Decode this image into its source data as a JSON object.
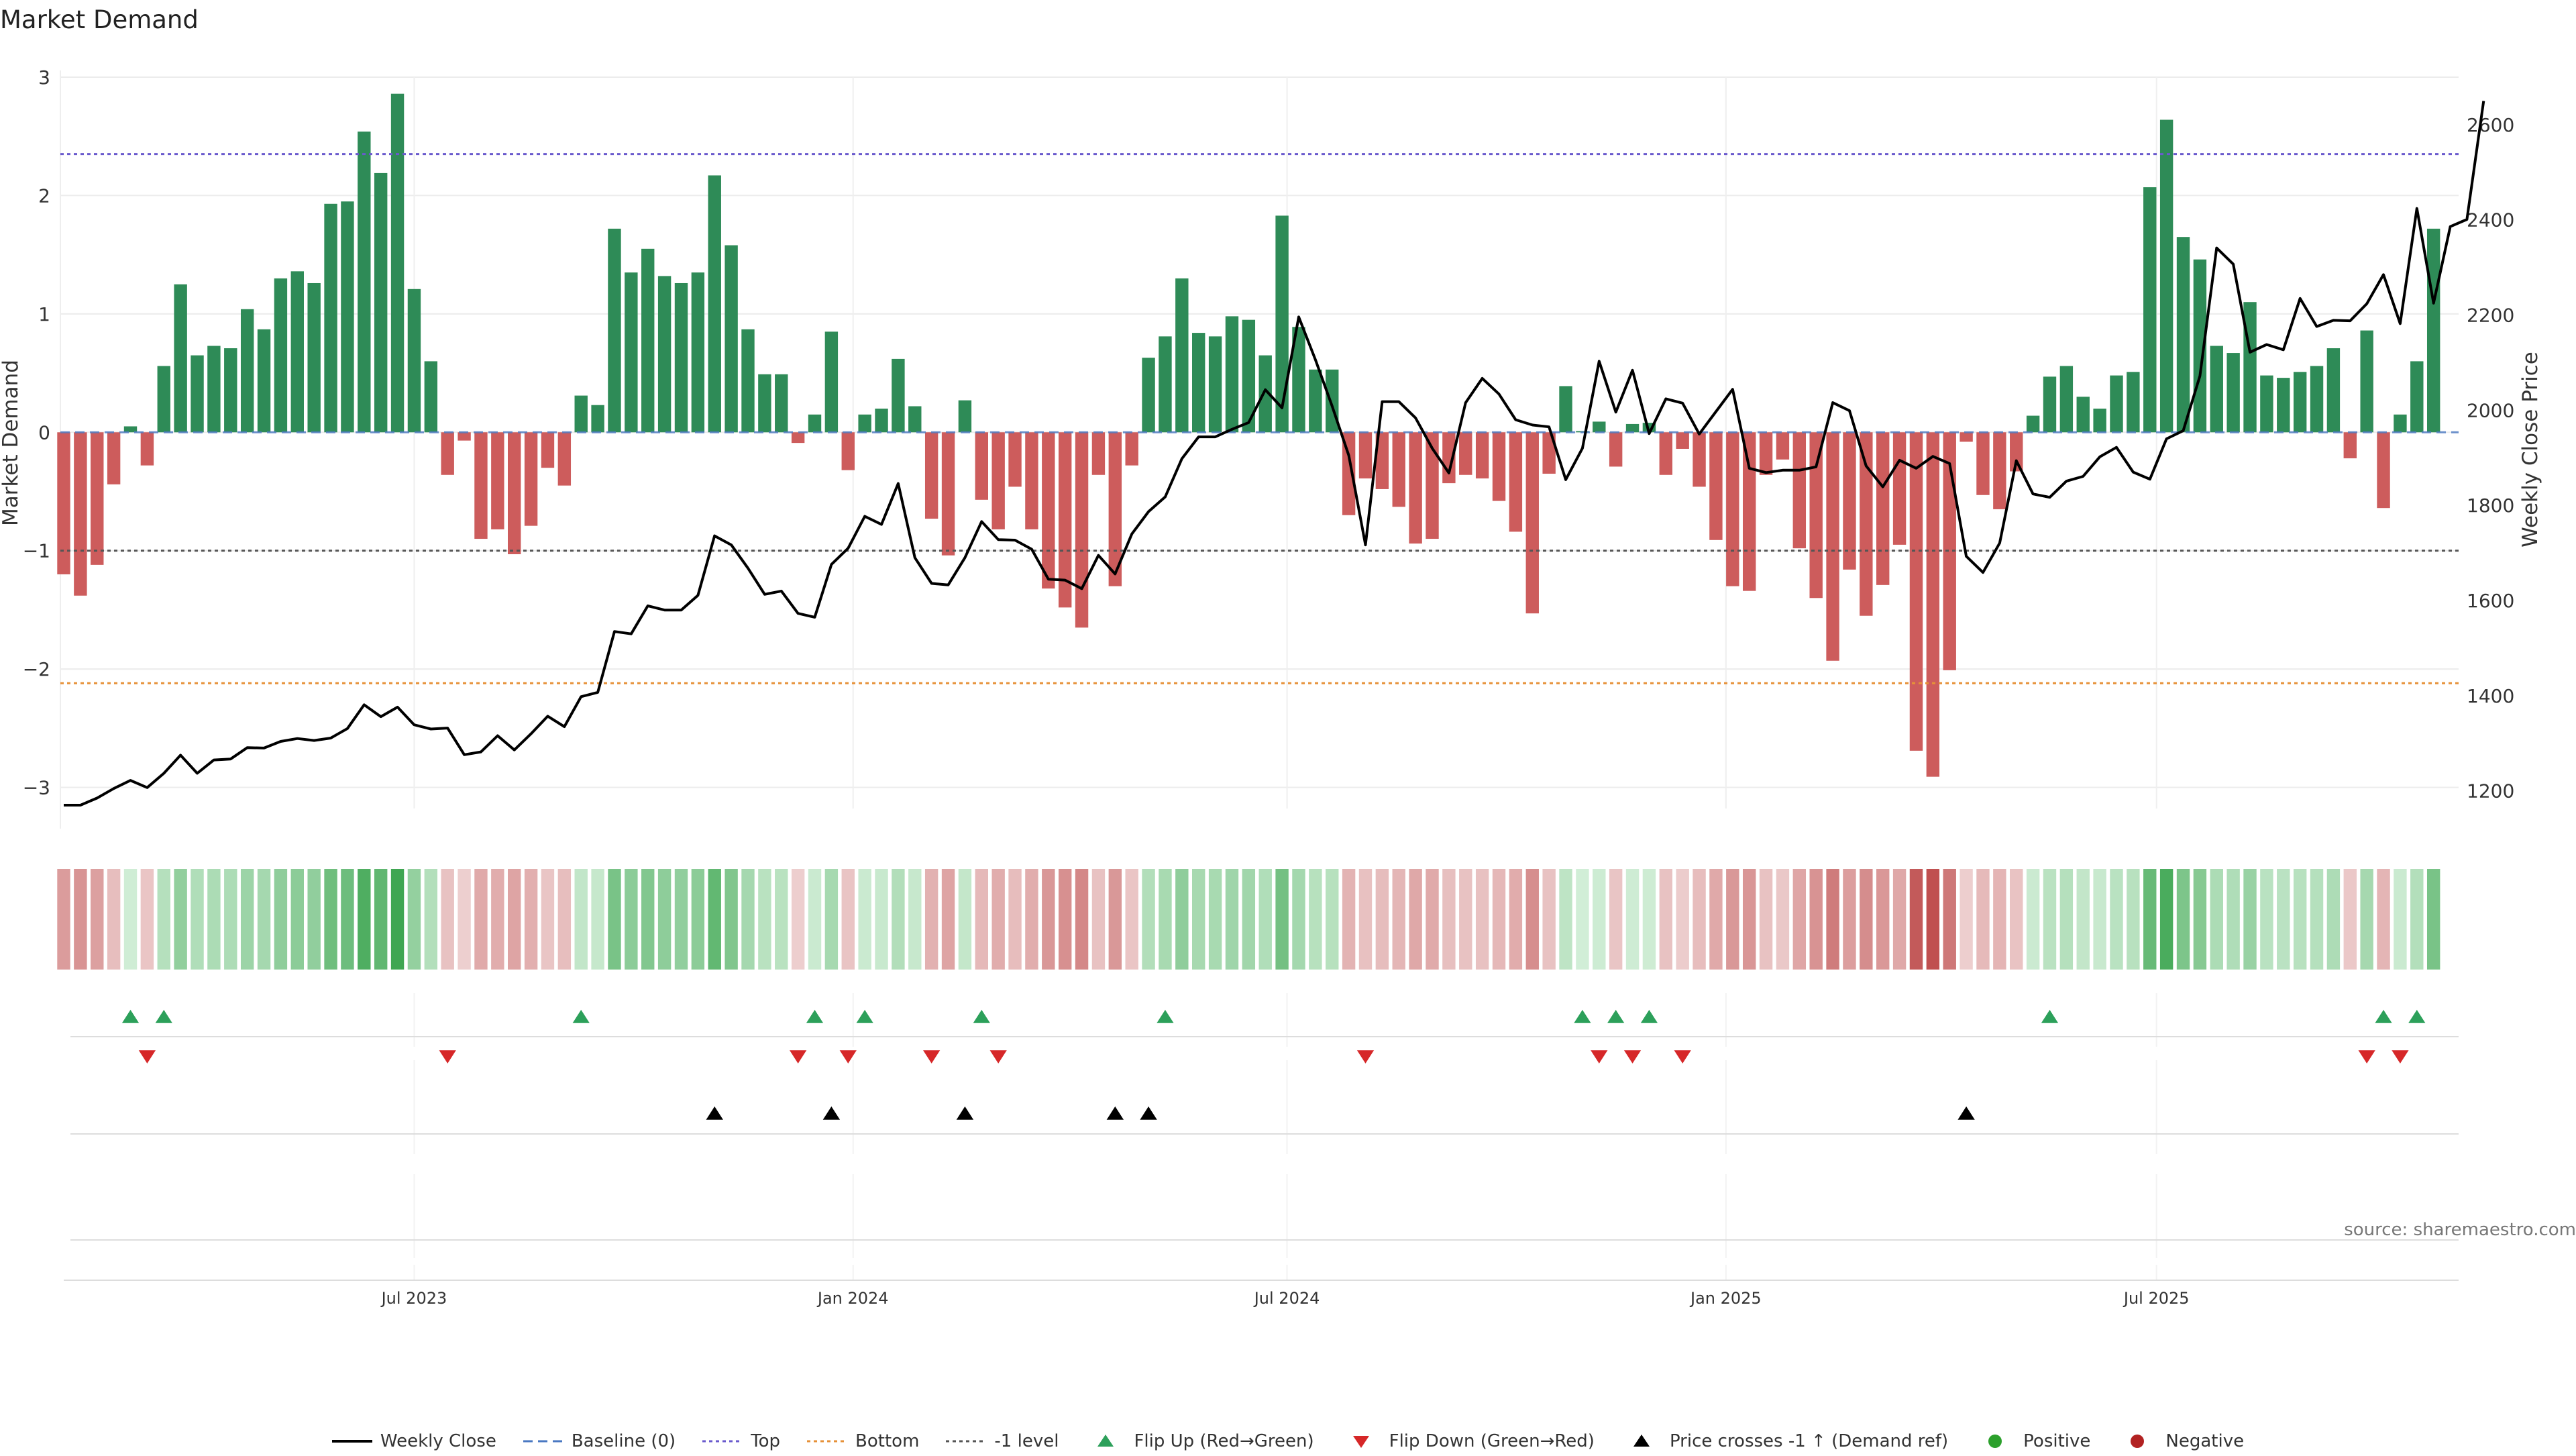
{
  "title": "Market Demand",
  "source": "source: sharemaestro.com",
  "colors": {
    "positive": "#2e8b57",
    "negative": "#cd5c5c",
    "price": "#000000",
    "top": "#6a5acd",
    "bottom": "#e69138",
    "minus1": "#555555",
    "baseline": "#4a78c2",
    "flip_up": "#2ca05a",
    "flip_down": "#d62728",
    "cross": "#000000",
    "pos_dot": "#2ca02c",
    "neg_dot": "#b22222"
  },
  "legend": [
    {
      "key": "price",
      "label": "Weekly Close",
      "style": "line"
    },
    {
      "key": "baseline",
      "label": "Baseline (0)",
      "style": "dash"
    },
    {
      "key": "top",
      "label": "Top",
      "style": "dot"
    },
    {
      "key": "bottom",
      "label": "Bottom",
      "style": "dot"
    },
    {
      "key": "minus1",
      "label": "-1 level",
      "style": "dot"
    },
    {
      "key": "flip_up",
      "label": "Flip Up (Red→Green)",
      "style": "tri-up"
    },
    {
      "key": "flip_down",
      "label": "Flip Down (Green→Red)",
      "style": "tri-down"
    },
    {
      "key": "cross",
      "label": "Price crosses -1 ↑ (Demand ref)",
      "style": "tri-up"
    },
    {
      "key": "pos_dot",
      "label": "Positive",
      "style": "dot-marker"
    },
    {
      "key": "neg_dot",
      "label": "Negative",
      "style": "dot-marker"
    }
  ],
  "chart_data": {
    "type": "bar",
    "title": "Market Demand",
    "ylabel": "Market Demand",
    "y2label": "Weekly Close Price",
    "ylim": [
      -3.15,
      3.0
    ],
    "y2lim": [
      1170,
      2700
    ],
    "yticks": [
      3,
      2,
      1,
      0,
      -1,
      -2,
      -3
    ],
    "ytick_labels": [
      "3",
      "2",
      "1",
      "0",
      "−1",
      "−2",
      "−3"
    ],
    "y2ticks": [
      2600,
      2400,
      2200,
      2000,
      1800,
      1600,
      1400,
      1200
    ],
    "top_level": 2.35,
    "bottom_level": -2.12,
    "minus1_level": -1.0,
    "x_start_week": 0,
    "x_end_week": 143.5,
    "xticks": [
      {
        "label": "Jul 2023",
        "week": 21
      },
      {
        "label": "Jan 2024",
        "week": 47.3
      },
      {
        "label": "Jul 2024",
        "week": 73.3
      },
      {
        "label": "Jan 2025",
        "week": 99.6
      },
      {
        "label": "Jul 2025",
        "week": 125.4
      }
    ],
    "demand": [
      -1.2,
      -1.38,
      -1.12,
      -0.44,
      0.05,
      -0.28,
      0.56,
      1.25,
      0.65,
      0.73,
      0.71,
      1.04,
      0.87,
      1.3,
      1.36,
      1.26,
      1.93,
      1.95,
      2.54,
      2.19,
      2.86,
      1.21,
      0.6,
      -0.36,
      -0.07,
      -0.9,
      -0.82,
      -1.03,
      -0.79,
      -0.3,
      -0.45,
      0.31,
      0.23,
      1.72,
      1.35,
      1.55,
      1.32,
      1.26,
      1.35,
      2.17,
      1.58,
      0.87,
      0.49,
      0.49,
      -0.09,
      0.15,
      0.85,
      -0.32,
      0.15,
      0.2,
      0.62,
      0.22,
      -0.73,
      -1.04,
      0.27,
      -0.57,
      -0.82,
      -0.46,
      -0.82,
      -1.32,
      -1.48,
      -1.65,
      -0.36,
      -1.3,
      -0.28,
      0.63,
      0.81,
      1.3,
      0.84,
      0.81,
      0.98,
      0.95,
      0.65,
      1.83,
      0.89,
      0.53,
      0.53,
      -0.7,
      -0.39,
      -0.48,
      -0.63,
      -0.94,
      -0.9,
      -0.43,
      -0.36,
      -0.39,
      -0.58,
      -0.84,
      -1.53,
      -0.35,
      0.39,
      0.01,
      0.09,
      -0.29,
      0.07,
      0.08,
      -0.36,
      -0.14,
      -0.46,
      -0.91,
      -1.3,
      -1.34,
      -0.36,
      -0.23,
      -0.98,
      -1.4,
      -1.93,
      -1.16,
      -1.55,
      -1.29,
      -0.95,
      -2.69,
      -2.91,
      -2.01,
      -0.08,
      -0.53,
      -0.65,
      -0.33,
      0.14,
      0.47,
      0.56,
      0.3,
      0.2,
      0.48,
      0.51,
      2.07,
      2.64,
      1.65,
      1.46,
      0.73,
      0.67,
      1.1,
      0.48,
      0.46,
      0.51,
      0.56,
      0.71,
      -0.22,
      0.86,
      -0.64,
      0.15,
      0.6,
      1.72
    ],
    "price": [
      1170,
      1170,
      1185,
      1205,
      1222,
      1207,
      1237,
      1275,
      1237,
      1265,
      1267,
      1291,
      1290,
      1304,
      1310,
      1306,
      1311,
      1331,
      1381,
      1356,
      1376,
      1339,
      1330,
      1332,
      1276,
      1282,
      1316,
      1286,
      1320,
      1357,
      1335,
      1398,
      1407,
      1535,
      1530,
      1589,
      1580,
      1580,
      1611,
      1736,
      1717,
      1668,
      1613,
      1620,
      1573,
      1565,
      1676,
      1710,
      1777,
      1760,
      1846,
      1690,
      1636,
      1633,
      1690,
      1766,
      1728,
      1727,
      1708,
      1645,
      1643,
      1625,
      1695,
      1656,
      1740,
      1787,
      1818,
      1898,
      1944,
      1944,
      1960,
      1974,
      2043,
      2005,
      2196,
      2106,
      2009,
      1905,
      1717,
      2018,
      2018,
      1984,
      1920,
      1868,
      2016,
      2067,
      2034,
      1980,
      1969,
      1965,
      1854,
      1920,
      2103,
      1996,
      2084,
      1951,
      2024,
      2015,
      1950,
      1997,
      2044,
      1878,
      1869,
      1874,
      1874,
      1881,
      2016,
      1999,
      1883,
      1839,
      1895,
      1878,
      1903,
      1888,
      1693,
      1659,
      1721,
      1894,
      1824,
      1817,
      1851,
      1861,
      1902,
      1922,
      1870,
      1855,
      1940,
      1957,
      2072,
      2341,
      2307,
      2122,
      2138,
      2127,
      2235,
      2176,
      2189,
      2188,
      2224,
      2285,
      2182,
      2424,
      2225,
      2386,
      2401,
      2650
    ]
  },
  "strip_scale": {
    "max_abs": 2.91
  },
  "events": {
    "flip_up_weeks": [
      4,
      6,
      31,
      45,
      48,
      55,
      66,
      91,
      93,
      95,
      119,
      139,
      141
    ],
    "flip_down_weeks": [
      5,
      23,
      44,
      47,
      52,
      56,
      78,
      92,
      94,
      97,
      138,
      140
    ],
    "cross_weeks": [
      39,
      46,
      54,
      63,
      65,
      114
    ]
  }
}
